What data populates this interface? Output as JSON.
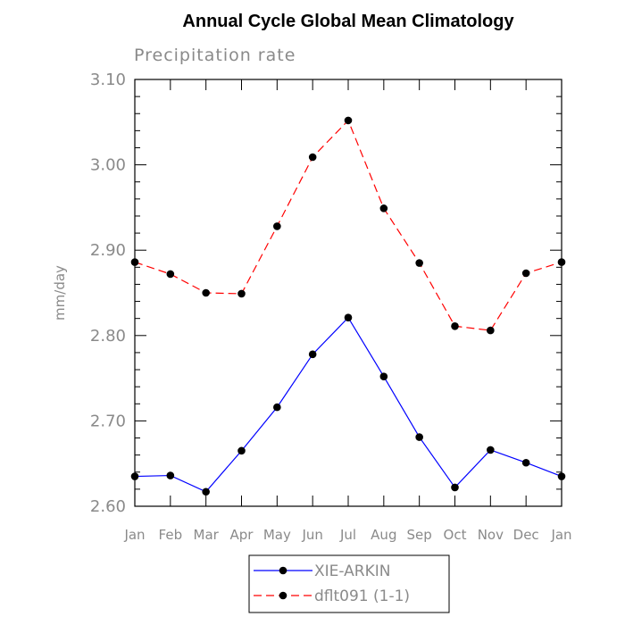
{
  "chart_data": {
    "type": "line",
    "title": "Annual Cycle Global Mean Climatology",
    "subtitle": "Precipitation rate",
    "xlabel": "",
    "ylabel": "mm/day",
    "ylim": [
      2.6,
      3.1
    ],
    "yticks": [
      "2.60",
      "2.70",
      "2.80",
      "2.90",
      "3.00",
      "3.10"
    ],
    "categories": [
      "Jan",
      "Feb",
      "Mar",
      "Apr",
      "May",
      "Jun",
      "Jul",
      "Aug",
      "Sep",
      "Oct",
      "Nov",
      "Dec",
      "Jan"
    ],
    "series": [
      {
        "name": "XIE-ARKIN",
        "color": "#0000ff",
        "dash": "solid",
        "marker": "filled-circle",
        "values": [
          2.635,
          2.636,
          2.617,
          2.665,
          2.716,
          2.778,
          2.821,
          2.752,
          2.681,
          2.622,
          2.666,
          2.651,
          2.635
        ]
      },
      {
        "name": "dflt091 (1-1)",
        "color": "#ff0000",
        "dash": "dashed",
        "marker": "filled-circle",
        "values": [
          2.886,
          2.872,
          2.85,
          2.849,
          2.928,
          3.009,
          3.052,
          2.949,
          2.885,
          2.811,
          2.806,
          2.873,
          2.886
        ]
      }
    ],
    "legend_position": "bottom-center",
    "grid": false
  }
}
